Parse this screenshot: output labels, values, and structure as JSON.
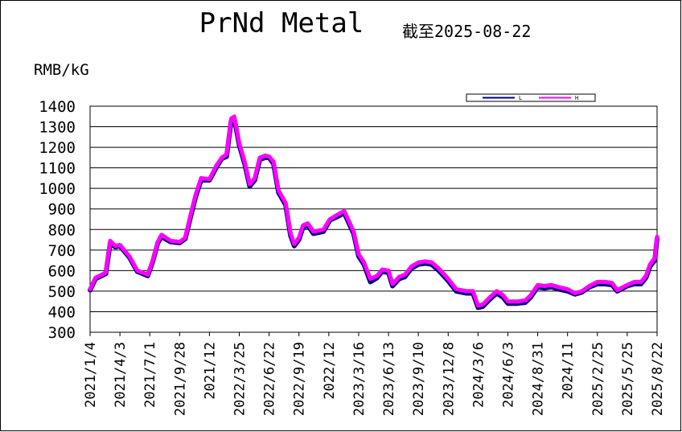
{
  "chart_data": {
    "type": "line",
    "title": "PrNd Metal",
    "subtitle": "截至2025-08-22",
    "y_label": "RMB/kG",
    "x": [
      "2021/1/4",
      "2021/1/20",
      "2021/2/20",
      "2021/3/5",
      "2021/3/20",
      "2021/4/3",
      "2021/5/1",
      "2021/5/25",
      "2021/6/10",
      "2021/6/25",
      "2021/7/10",
      "2021/7/25",
      "2021/8/5",
      "2021/9/1",
      "2021/9/28",
      "2021/10/15",
      "2021/11/1",
      "2021/11/15",
      "2021/12/1",
      "2021/12/26",
      "2022/1/15",
      "2022/2/1",
      "2022/2/15",
      "2022/3/1",
      "2022/3/10",
      "2022/3/25",
      "2022/4/10",
      "2022/4/25",
      "2022/5/10",
      "2022/5/25",
      "2022/6/10",
      "2022/6/22",
      "2022/7/5",
      "2022/7/20",
      "2022/8/10",
      "2022/8/25",
      "2022/9/5",
      "2022/9/19",
      "2022/10/1",
      "2022/10/15",
      "2022/11/1",
      "2022/12/1",
      "2022/12/20",
      "2023/1/15",
      "2023/2/1",
      "2023/2/15",
      "2023/3/1",
      "2023/3/16",
      "2023/4/1",
      "2023/4/20",
      "2023/5/10",
      "2023/5/25",
      "2023/6/13",
      "2023/6/25",
      "2023/7/15",
      "2023/8/1",
      "2023/8/20",
      "2023/9/10",
      "2023/10/1",
      "2023/10/20",
      "2023/11/10",
      "2023/12/8",
      "2024/1/1",
      "2024/2/1",
      "2024/2/20",
      "2024/3/6",
      "2024/3/20",
      "2024/4/10",
      "2024/5/1",
      "2024/5/20",
      "2024/6/3",
      "2024/7/1",
      "2024/7/25",
      "2024/8/10",
      "2024/8/31",
      "2024/9/20",
      "2024/10/10",
      "2024/11/1",
      "2024/11/28",
      "2024/12/20",
      "2025/1/10",
      "2025/2/1",
      "2025/2/25",
      "2025/3/20",
      "2025/4/10",
      "2025/4/25",
      "2025/5/25",
      "2025/6/15",
      "2025/7/5",
      "2025/7/20",
      "2025/8/1",
      "2025/8/15",
      "2025/8/22"
    ],
    "series": [
      {
        "name": "L",
        "color": "#000080",
        "values": [
          505,
          560,
          585,
          735,
          715,
          720,
          665,
          595,
          585,
          575,
          645,
          735,
          765,
          740,
          735,
          755,
          870,
          960,
          1040,
          1040,
          1100,
          1145,
          1155,
          1330,
          1340,
          1210,
          1120,
          1010,
          1040,
          1140,
          1150,
          1150,
          1120,
          980,
          920,
          770,
          720,
          750,
          810,
          820,
          780,
          790,
          845,
          865,
          880,
          830,
          780,
          670,
          630,
          545,
          565,
          595,
          590,
          525,
          560,
          570,
          610,
          630,
          635,
          630,
          600,
          550,
          500,
          490,
          490,
          420,
          425,
          460,
          490,
          470,
          440,
          440,
          445,
          470,
          520,
          515,
          520,
          510,
          500,
          485,
          495,
          520,
          535,
          535,
          530,
          500,
          525,
          535,
          535,
          565,
          620,
          650,
          755
        ]
      },
      {
        "name": "H",
        "color": "#ff00ff",
        "values": [
          510,
          565,
          590,
          745,
          720,
          725,
          670,
          600,
          590,
          580,
          650,
          740,
          775,
          745,
          740,
          760,
          880,
          970,
          1050,
          1045,
          1110,
          1150,
          1165,
          1340,
          1350,
          1220,
          1130,
          1020,
          1050,
          1150,
          1160,
          1155,
          1130,
          990,
          930,
          780,
          730,
          760,
          820,
          830,
          790,
          800,
          850,
          875,
          890,
          840,
          790,
          680,
          640,
          560,
          575,
          605,
          600,
          535,
          570,
          580,
          620,
          640,
          645,
          640,
          610,
          560,
          510,
          500,
          500,
          430,
          435,
          470,
          500,
          480,
          450,
          450,
          455,
          480,
          530,
          525,
          530,
          520,
          510,
          490,
          500,
          525,
          545,
          545,
          540,
          505,
          530,
          545,
          545,
          575,
          630,
          660,
          765
        ]
      }
    ],
    "xticks": [
      "2021/1/4",
      "2021/4/3",
      "2021/7/1",
      "2021/9/28",
      {
        "value": "2021/12/26",
        "label": "2021/12"
      },
      "2022/3/25",
      "2022/6/22",
      "2022/9/19",
      {
        "value": "2022/12/17",
        "label": "2022/12"
      },
      "2023/3/16",
      "2023/6/13",
      "2023/9/10",
      "2023/12/8",
      "2024/3/6",
      "2024/6/3",
      "2024/8/31",
      {
        "value": "2024/11/28",
        "label": "2024/11"
      },
      "2025/2/25",
      "2025/5/25",
      "2025/8/22"
    ],
    "xlim": [
      "2021/1/4",
      "2025/8/22"
    ],
    "ylim": [
      300,
      1400
    ],
    "yticks": [
      300,
      400,
      500,
      600,
      700,
      800,
      900,
      1000,
      1100,
      1200,
      1300,
      1400
    ],
    "grid": true
  }
}
